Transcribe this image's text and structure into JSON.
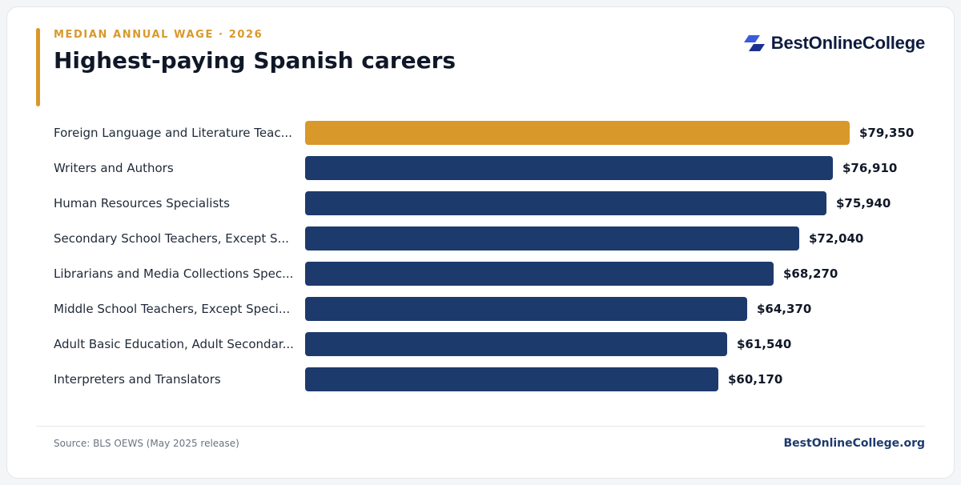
{
  "header": {
    "eyebrow": "MEDIAN ANNUAL WAGE · 2026",
    "title": "Highest-paying Spanish careers",
    "logo_text": "BestOnlineCollege"
  },
  "footer": {
    "source": "Source: BLS OEWS (May 2025 release)",
    "brand": "BestOnlineCollege.org"
  },
  "colors": {
    "accent": "#d9982a",
    "bar": "#1d3a6c",
    "highlight": "#d9982a"
  },
  "chart_data": {
    "type": "bar",
    "orientation": "horizontal",
    "categories": [
      "Foreign Language and Literature Teachers, Postsecondary",
      "Writers and Authors",
      "Human Resources Specialists",
      "Secondary School Teachers, Except Special and Career/Technical Education",
      "Librarians and Media Collections Specialists",
      "Middle School Teachers, Except Special and Career/Technical Education",
      "Adult Basic Education, Adult Secondary Education, and English as a Second Language Instructors",
      "Interpreters and Translators"
    ],
    "display_categories": [
      "Foreign Language and Literature Teac...",
      "Writers and Authors",
      "Human Resources Specialists",
      "Secondary School Teachers, Except S...",
      "Librarians and Media Collections Spec...",
      "Middle School Teachers, Except Speci...",
      "Adult Basic Education, Adult Secondar...",
      "Interpreters and Translators"
    ],
    "values": [
      79350,
      76910,
      75940,
      72040,
      68270,
      64370,
      61540,
      60170
    ],
    "value_labels": [
      "$79,350",
      "$76,910",
      "$75,940",
      "$72,040",
      "$68,270",
      "$64,370",
      "$61,540",
      "$60,170"
    ],
    "highlight_index": 0,
    "xlim": [
      0,
      79350
    ],
    "grid": false,
    "legend": "none"
  }
}
